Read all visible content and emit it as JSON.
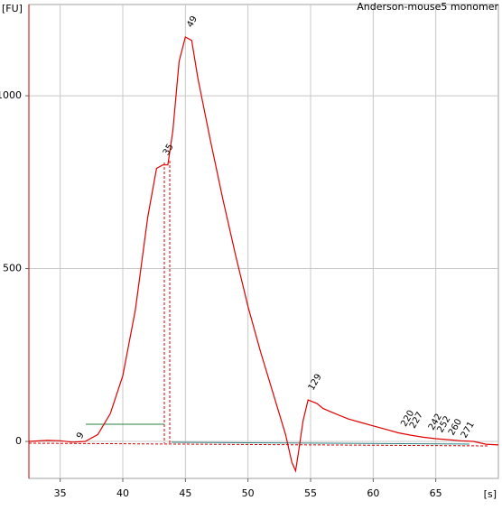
{
  "chart_data": {
    "type": "line",
    "title": "Anderson-mouse5 monomer",
    "y_label": "[FU]",
    "x_label": "[s]",
    "color": "#e00000",
    "grid": true,
    "xlim": [
      32.5,
      70
    ],
    "ylim": [
      -107,
      1264
    ],
    "xticks": [
      35,
      40,
      45,
      50,
      55,
      60,
      65
    ],
    "yticks": [
      0,
      500,
      1000
    ],
    "x": [
      32.5,
      34,
      35,
      36,
      37,
      38,
      39,
      40,
      41,
      42,
      42.7,
      43.2,
      43.6,
      44,
      44.5,
      45,
      45.5,
      46,
      47,
      48,
      49,
      50,
      51,
      52,
      53,
      53.5,
      53.8,
      54,
      54.4,
      54.8,
      55.5,
      56,
      57,
      58,
      59,
      60,
      61,
      62,
      63,
      64,
      65,
      66,
      67,
      68,
      69,
      70
    ],
    "values": [
      0,
      3,
      2,
      -2,
      0,
      20,
      80,
      190,
      380,
      650,
      790,
      800,
      800,
      900,
      1100,
      1170,
      1160,
      1050,
      870,
      700,
      540,
      390,
      260,
      140,
      20,
      -60,
      -85,
      -40,
      60,
      120,
      110,
      95,
      80,
      65,
      55,
      45,
      35,
      25,
      18,
      12,
      8,
      5,
      2,
      0,
      -8,
      -10
    ],
    "annotations": [
      {
        "text": "9",
        "x": 36.5,
        "y": 10,
        "color": "#000000"
      },
      {
        "text": "35",
        "x": 43.4,
        "y": 830,
        "color": "#008000"
      },
      {
        "text": "49",
        "x": 45.3,
        "y": 1200,
        "color": "#000000"
      },
      {
        "text": "129",
        "x": 55,
        "y": 150,
        "color": "#000000"
      },
      {
        "text": "220",
        "x": 62.4,
        "y": 45,
        "color": "#000000"
      },
      {
        "text": "227",
        "x": 63.1,
        "y": 40,
        "color": "#000000"
      },
      {
        "text": "242",
        "x": 64.6,
        "y": 35,
        "color": "#000000"
      },
      {
        "text": "252",
        "x": 65.3,
        "y": 28,
        "color": "#000000"
      },
      {
        "text": "260",
        "x": 66.2,
        "y": 20,
        "color": "#000000"
      },
      {
        "text": "271",
        "x": 67.2,
        "y": 12,
        "color": "#000000"
      }
    ]
  }
}
